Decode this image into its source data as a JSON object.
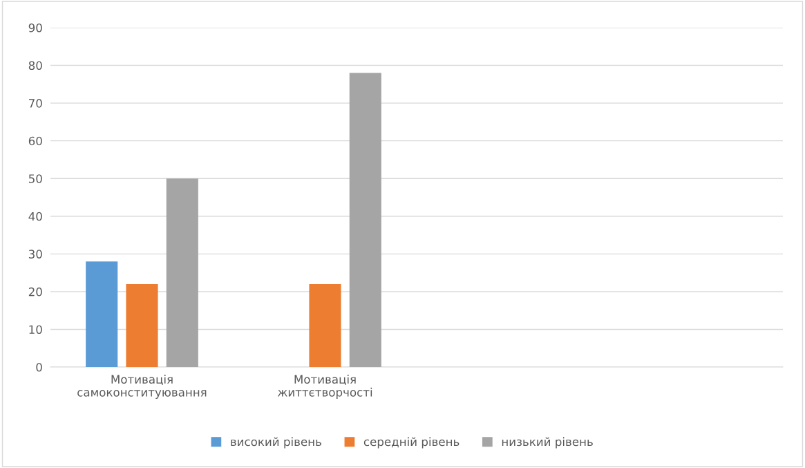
{
  "chart_data": {
    "type": "bar",
    "categories": [
      "Мотивація\nсамоконституювання",
      "Мотивація\nжиттєтворчості",
      null,
      null
    ],
    "series": [
      {
        "name": "високий рівень",
        "color": "#5b9bd5",
        "values": [
          28,
          null,
          null,
          null
        ]
      },
      {
        "name": "середній рівень",
        "color": "#ed7d31",
        "values": [
          22,
          22,
          null,
          null
        ]
      },
      {
        "name": "низький рівень",
        "color": "#a5a5a5",
        "values": [
          50,
          78,
          null,
          null
        ]
      }
    ],
    "ylim": [
      0,
      90
    ],
    "yticks": [
      0,
      10,
      20,
      30,
      40,
      50,
      60,
      70,
      80,
      90
    ],
    "grid": "y",
    "legend": "bottom"
  }
}
